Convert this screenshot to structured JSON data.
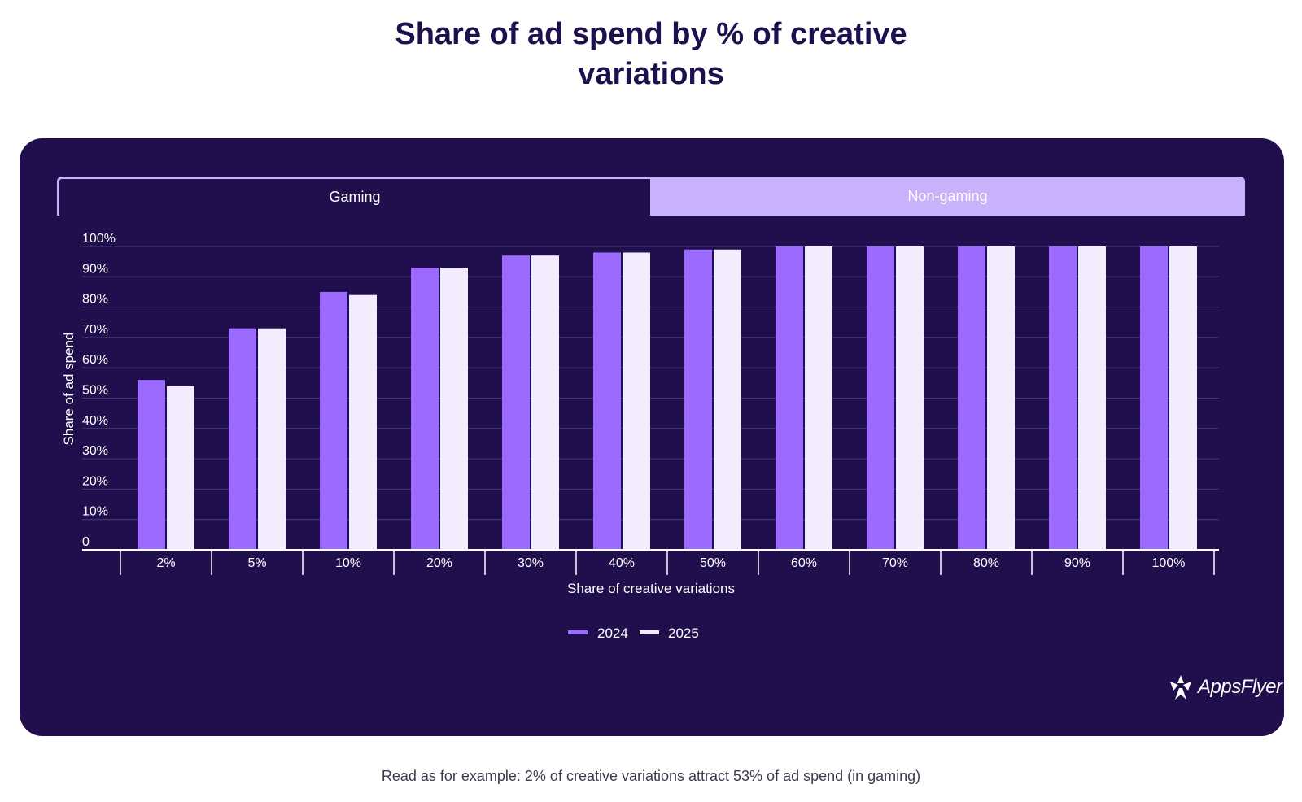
{
  "title_lines": [
    "Share of ad spend by % of creative",
    "variations"
  ],
  "tabs": {
    "gaming": "Gaming",
    "non_gaming": "Non-gaming"
  },
  "brand": {
    "name": "AppsFlyer",
    "icon": "appsflyer-logo-icon"
  },
  "footnote": "Read as for example: 2% of creative variations attract 53% of ad spend (in gaming)",
  "colors": {
    "title": "#1e0f4e",
    "card": "#200f4c",
    "series_2024": "#9b6bff",
    "series_2025": "#f3ecff",
    "grid": "#4c3b7a",
    "axis": "#ffffff",
    "tab_inactive": "#c9b1fb"
  },
  "chart_data": {
    "type": "bar",
    "title": "Share of ad spend by % of creative variations",
    "xlabel": "Share of creative variations",
    "ylabel": "Share of ad spend",
    "categories": [
      "2%",
      "5%",
      "10%",
      "20%",
      "30%",
      "40%",
      "50%",
      "60%",
      "70%",
      "80%",
      "90%",
      "100%"
    ],
    "series": [
      {
        "name": "2024",
        "values": [
          56,
          73,
          85,
          93,
          97,
          98,
          99,
          100,
          100,
          100,
          100,
          100
        ]
      },
      {
        "name": "2025",
        "values": [
          54,
          73,
          84,
          93,
          97,
          98,
          99,
          100,
          100,
          100,
          100,
          100
        ]
      }
    ],
    "ylim": [
      0,
      100
    ],
    "yticks": [
      0,
      10,
      20,
      30,
      40,
      50,
      60,
      70,
      80,
      90,
      100
    ],
    "ytick_labels": [
      "0",
      "10%",
      "20%",
      "30%",
      "40%",
      "50%",
      "60%",
      "70%",
      "80%",
      "90%",
      "100%"
    ],
    "grid": true,
    "legend": "bottom-center"
  }
}
